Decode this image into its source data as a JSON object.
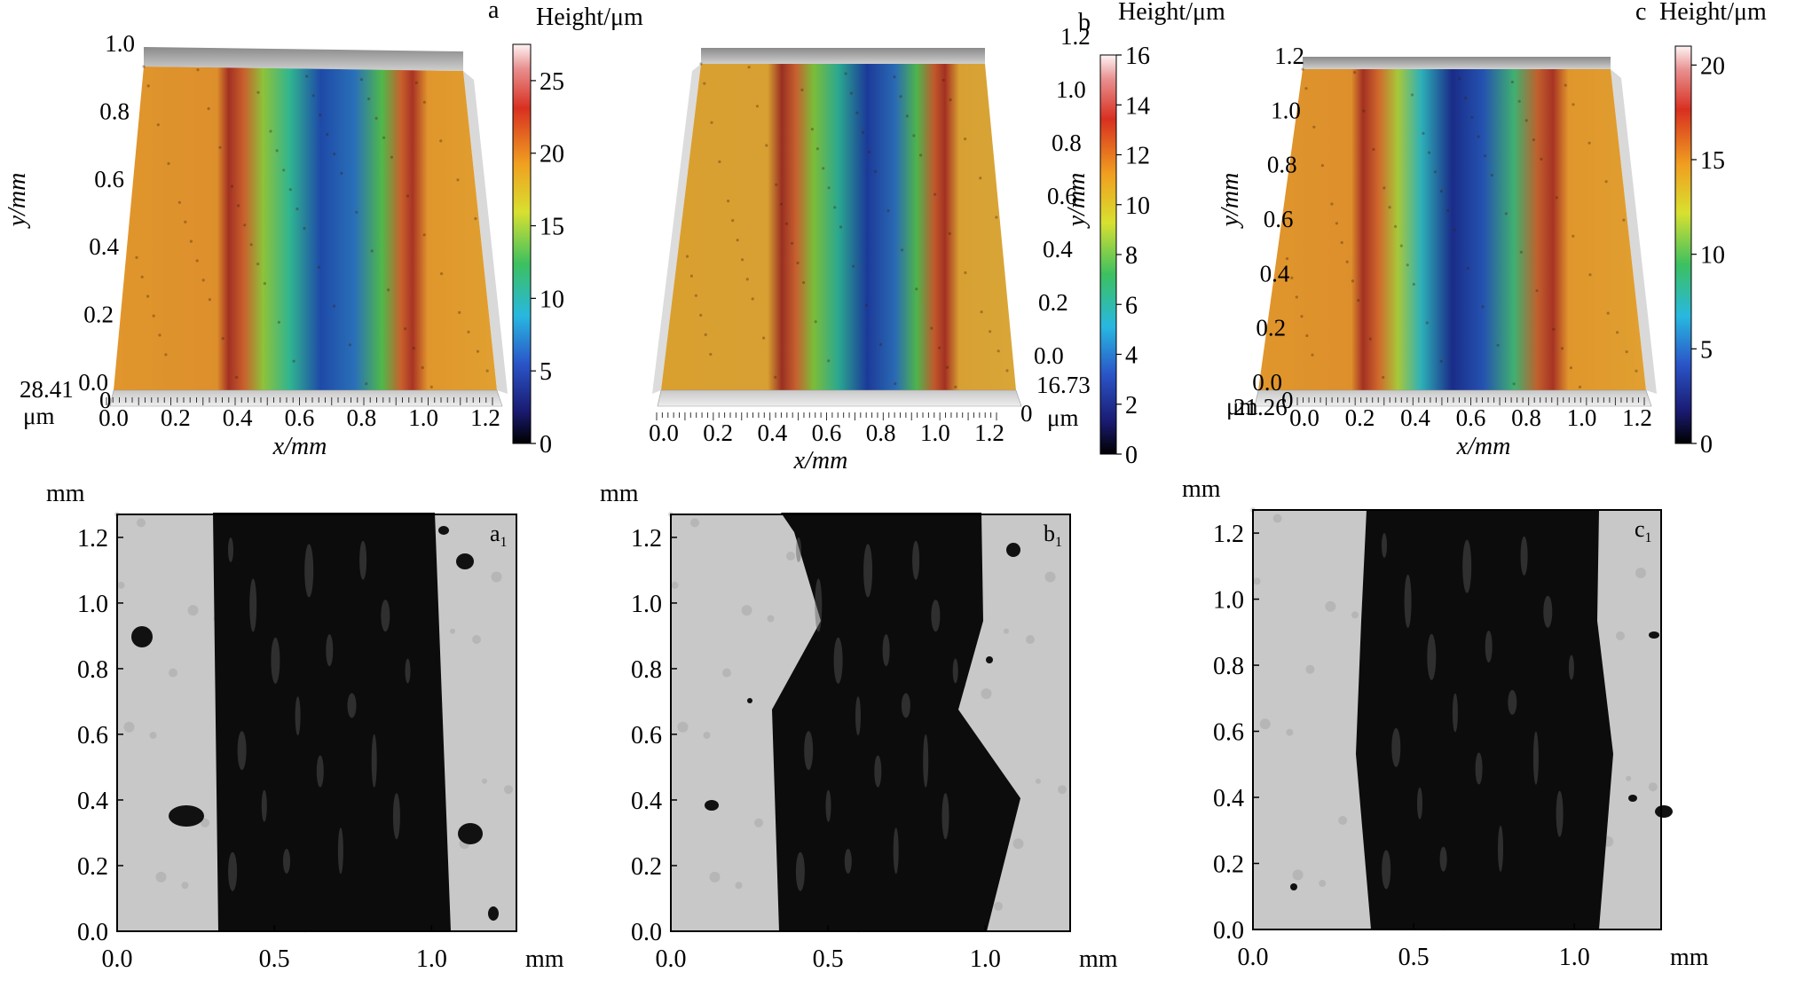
{
  "top_panels": [
    {
      "label": "a",
      "height_unit_label": "Height/μm",
      "colorbar_ticks": [
        "0",
        "5",
        "10",
        "15",
        "20",
        "25"
      ],
      "colorbar_max": 27.5,
      "z_corner_value": "28.41",
      "z_corner_unit": "μm",
      "z_zero": "0",
      "x_ticks": [
        "0.0",
        "0.2",
        "0.4",
        "0.6",
        "0.8",
        "1.0",
        "1.2"
      ],
      "y_ticks": [
        "0.0",
        "0.2",
        "0.4",
        "0.6",
        "0.8",
        "1.0"
      ],
      "x_label": "x/mm",
      "y_label": "y/mm"
    },
    {
      "label": "b",
      "height_unit_label": "Height/μm",
      "colorbar_ticks": [
        "0",
        "2",
        "4",
        "6",
        "8",
        "10",
        "12",
        "14",
        "16"
      ],
      "colorbar_max": 16,
      "z_corner_value": "16.73",
      "z_corner_unit": "μm",
      "z_zero": "0",
      "x_ticks": [
        "0.0",
        "0.2",
        "0.4",
        "0.6",
        "0.8",
        "1.0",
        "1.2"
      ],
      "y_ticks": [
        "0.0",
        "0.2",
        "0.4",
        "0.6",
        "0.8",
        "1.0",
        "1.2"
      ],
      "x_label": "x/mm",
      "y_label": "y/mm"
    },
    {
      "label": "c",
      "height_unit_label": "Height/μm",
      "colorbar_ticks": [
        "0",
        "5",
        "10",
        "15",
        "20"
      ],
      "colorbar_max": 21,
      "z_corner_value": "21.26",
      "z_corner_unit": "μm",
      "z_zero": "0",
      "x_ticks": [
        "0.0",
        "0.2",
        "0.4",
        "0.6",
        "0.8",
        "1.0",
        "1.2"
      ],
      "y_ticks": [
        "0.0",
        "0.2",
        "0.4",
        "0.6",
        "0.8",
        "1.0",
        "1.2"
      ],
      "x_label": "x/mm",
      "y_label": "y/mm"
    }
  ],
  "bottom_panels": [
    {
      "label": "a",
      "label_sub": "1",
      "unit_top": "mm",
      "unit_right": "mm",
      "y_ticks": [
        "0.0",
        "0.2",
        "0.4",
        "0.6",
        "0.8",
        "1.0",
        "1.2"
      ],
      "x_ticks": [
        "0.0",
        "0.5",
        "1.0"
      ]
    },
    {
      "label": "b",
      "label_sub": "1",
      "unit_top": "mm",
      "unit_right": "mm",
      "y_ticks": [
        "0.0",
        "0.2",
        "0.4",
        "0.6",
        "0.8",
        "1.0",
        "1.2"
      ],
      "x_ticks": [
        "0.0",
        "0.5",
        "1.0"
      ]
    },
    {
      "label": "c",
      "label_sub": "1",
      "unit_top": "mm",
      "unit_right": "mm",
      "y_ticks": [
        "0.0",
        "0.2",
        "0.4",
        "0.6",
        "0.8",
        "1.0",
        "1.2"
      ],
      "x_ticks": [
        "0.0",
        "0.5",
        "1.0"
      ]
    }
  ]
}
